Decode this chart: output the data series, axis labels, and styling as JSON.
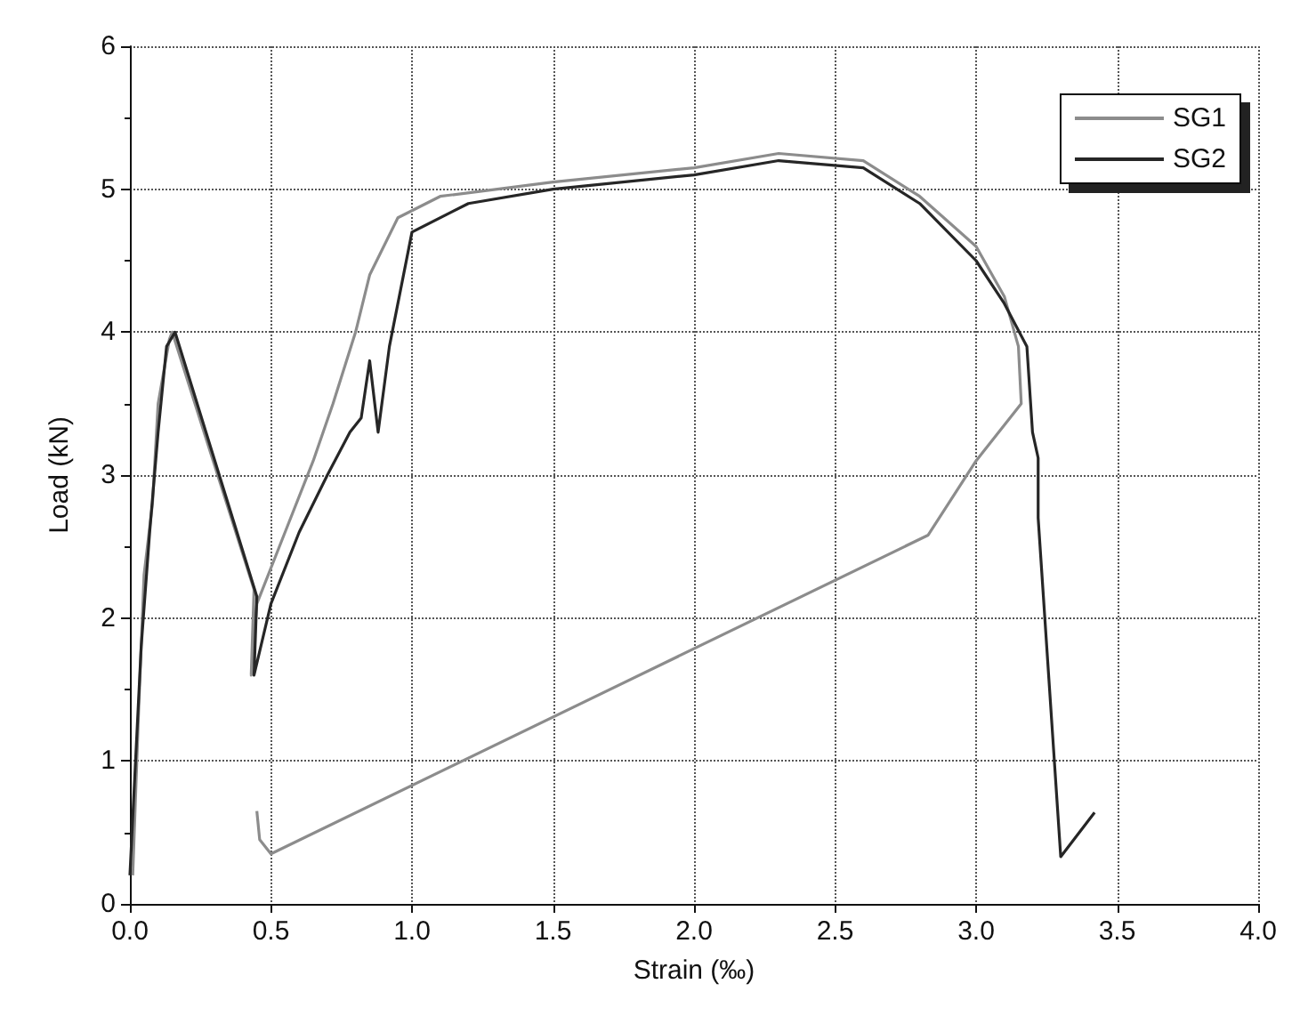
{
  "chart_data": {
    "type": "line",
    "xlabel": "Strain (‰)",
    "ylabel": "Load (kN)",
    "xlim": [
      0,
      4
    ],
    "ylim": [
      0,
      6
    ],
    "xticks": [
      {
        "value": 0,
        "label": "0.0"
      },
      0.5,
      {
        "value": 1,
        "label": "1.0"
      },
      1.5,
      {
        "value": 2,
        "label": "2.0"
      },
      2.5,
      {
        "value": 3,
        "label": "3.0"
      },
      3.5,
      {
        "value": 4,
        "label": "4.0"
      }
    ],
    "yticks": [
      0,
      1,
      2,
      3,
      4,
      5,
      6
    ],
    "grid": true,
    "legend": "top right",
    "marker": "none",
    "line_style": "solid",
    "series": [
      {
        "name": "SG1",
        "color": "#8c8c8c",
        "x": [
          0.01,
          0.03,
          0.05,
          0.08,
          0.1,
          0.14,
          0.15,
          0.44,
          0.43,
          0.45,
          0.55,
          0.65,
          0.72,
          0.8,
          0.85,
          0.95,
          1.1,
          1.5,
          2.0,
          2.3,
          2.6,
          2.8,
          3.0,
          3.1,
          3.15,
          3.16,
          3.0,
          2.83,
          0.5,
          0.46,
          0.45
        ],
        "values": [
          0.2,
          1.3,
          2.3,
          2.8,
          3.5,
          3.95,
          4.0,
          2.2,
          1.6,
          2.1,
          2.6,
          3.1,
          3.5,
          4.0,
          4.4,
          4.8,
          4.95,
          5.05,
          5.15,
          5.25,
          5.2,
          4.95,
          4.6,
          4.25,
          3.9,
          3.5,
          3.1,
          2.58,
          0.35,
          0.45,
          0.65
        ]
      },
      {
        "name": "SG2",
        "color": "#262626",
        "x": [
          0.0,
          0.04,
          0.07,
          0.1,
          0.13,
          0.16,
          0.45,
          0.44,
          0.5,
          0.6,
          0.7,
          0.78,
          0.82,
          0.85,
          0.88,
          0.92,
          1.0,
          1.2,
          1.5,
          2.0,
          2.3,
          2.6,
          2.8,
          3.0,
          3.1,
          3.18,
          3.2,
          3.22,
          3.22,
          3.3,
          3.42
        ],
        "values": [
          0.2,
          1.8,
          2.6,
          3.3,
          3.9,
          4.0,
          2.15,
          1.6,
          2.1,
          2.6,
          3.0,
          3.3,
          3.4,
          3.8,
          3.3,
          3.9,
          4.7,
          4.9,
          5.0,
          5.1,
          5.2,
          5.15,
          4.9,
          4.5,
          4.2,
          3.9,
          3.3,
          3.12,
          2.7,
          0.33,
          0.64
        ]
      }
    ]
  }
}
